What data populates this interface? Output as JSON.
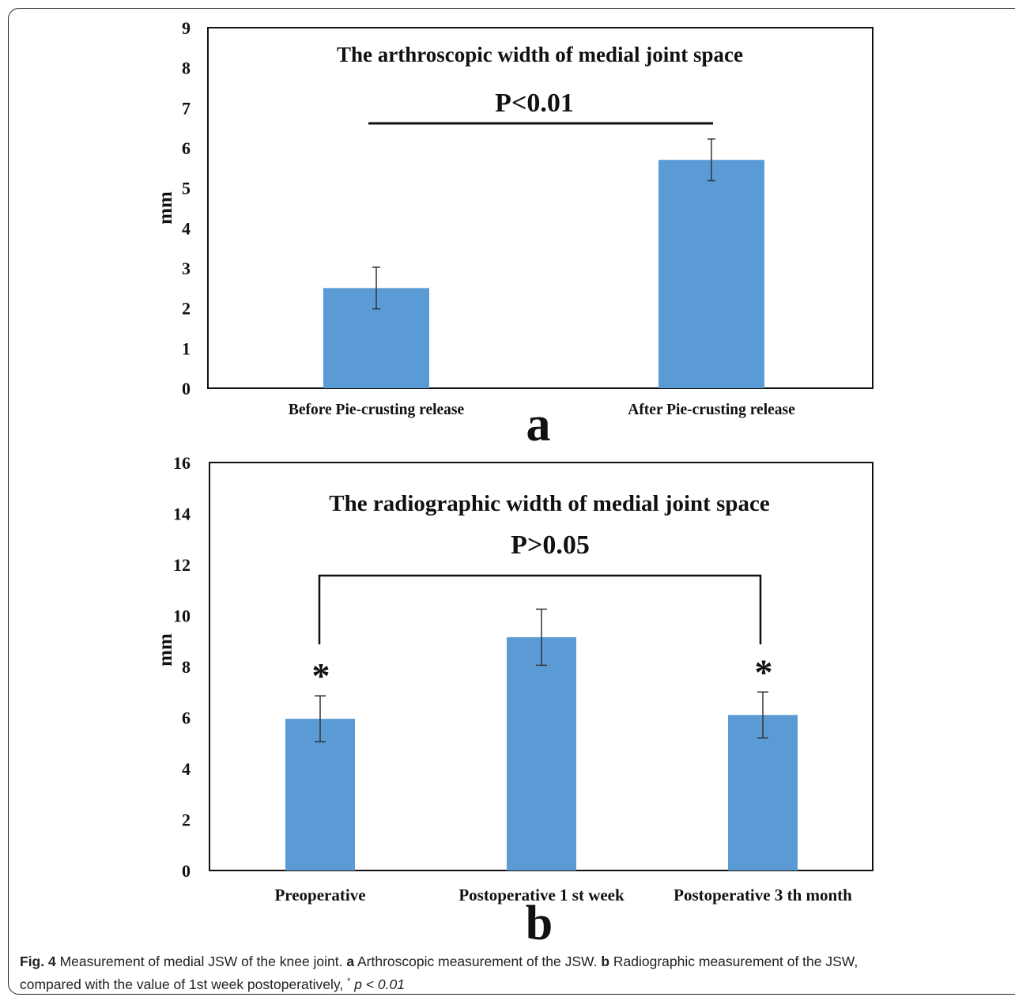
{
  "chart_data": [
    {
      "type": "bar",
      "title": "The arthroscopic width of medial joint space",
      "ylabel": "mm",
      "xlabel": "",
      "ylim": [
        0,
        9
      ],
      "yticks": [
        0,
        1,
        2,
        3,
        4,
        5,
        6,
        7,
        8,
        9
      ],
      "categories": [
        "Before Pie-crusting release",
        "After Pie-crusting release"
      ],
      "values": [
        2.5,
        5.7
      ],
      "errors": [
        0.52,
        0.52
      ],
      "significance": {
        "label": "P<0.01",
        "from": 0,
        "to": 1
      },
      "panel_label": "a",
      "bar_color": "#5b9bd5"
    },
    {
      "type": "bar",
      "title": "The radiographic width of medial joint space",
      "ylabel": "mm",
      "xlabel": "",
      "ylim": [
        0,
        16
      ],
      "yticks": [
        0,
        2,
        4,
        6,
        8,
        10,
        12,
        14,
        16
      ],
      "categories": [
        "Preoperative",
        "Postoperative 1 st week",
        "Postoperative 3 th month"
      ],
      "values": [
        5.95,
        9.15,
        6.1
      ],
      "errors": [
        0.9,
        1.1,
        0.9
      ],
      "markers": [
        "*",
        "",
        "*"
      ],
      "significance": {
        "label": "P>0.05",
        "from": 0,
        "to": 2
      },
      "panel_label": "b",
      "bar_color": "#5b9bd5"
    }
  ],
  "caption": {
    "fig_label": "Fig. 4",
    "text1": " Measurement of medial JSW of the knee joint. ",
    "a_label": "a",
    "a_text": " Arthroscopic measurement of the JSW. ",
    "b_label": "b",
    "b_text": " Radiographic measurement of the JSW,",
    "line2": "compared with the value of 1st week postoperatively, ",
    "star": "*",
    "pvalue": " p < 0.01"
  }
}
